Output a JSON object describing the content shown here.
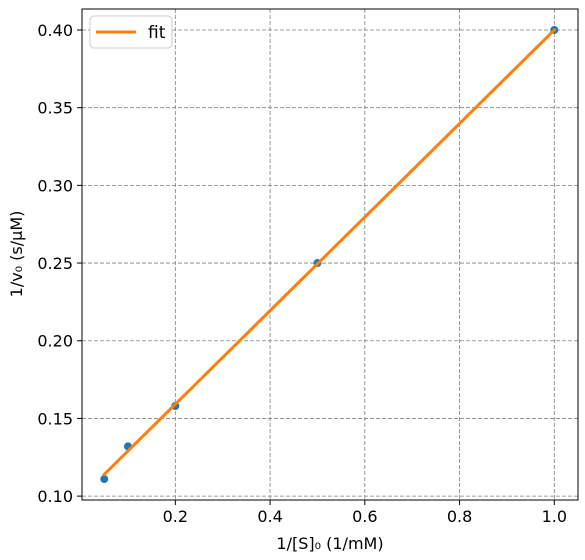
{
  "chart_data": {
    "type": "scatter",
    "xlabel": "1/[S]₀ (1/mM)",
    "ylabel": "1/v₀ (s/μM)",
    "xlim": [
      0.003,
      1.05
    ],
    "ylim": [
      0.0975,
      0.4135
    ],
    "x_ticks": [
      0.2,
      0.4,
      0.6,
      0.8,
      1.0
    ],
    "x_tick_labels": [
      "0.2",
      "0.4",
      "0.6",
      "0.8",
      "1.0"
    ],
    "y_ticks": [
      0.1,
      0.15,
      0.2,
      0.25,
      0.3,
      0.35,
      0.4
    ],
    "y_tick_labels": [
      "0.10",
      "0.15",
      "0.20",
      "0.25",
      "0.30",
      "0.35",
      "0.40"
    ],
    "grid": true,
    "legend_position": "top-left",
    "series": [
      {
        "kind": "scatter",
        "color": "#1f77b4",
        "x": [
          0.05,
          0.1,
          0.2,
          0.5,
          1.0
        ],
        "y": [
          0.111,
          0.132,
          0.158,
          0.25,
          0.4
        ]
      },
      {
        "kind": "line",
        "name": "fit",
        "color": "#ff7f0e",
        "x": [
          0.05,
          1.0
        ],
        "y": [
          0.114,
          0.4
        ]
      }
    ]
  }
}
